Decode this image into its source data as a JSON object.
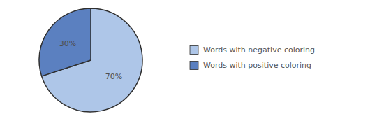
{
  "chart_data": {
    "type": "pie",
    "categories": [
      "Words with negative coloring",
      "Words with positive coloring"
    ],
    "values": [
      70,
      30
    ],
    "value_labels": [
      "70%",
      "30%"
    ],
    "data_labels": true,
    "colors": [
      "#aec6e8",
      "#5b80c0"
    ],
    "legend": "right"
  }
}
